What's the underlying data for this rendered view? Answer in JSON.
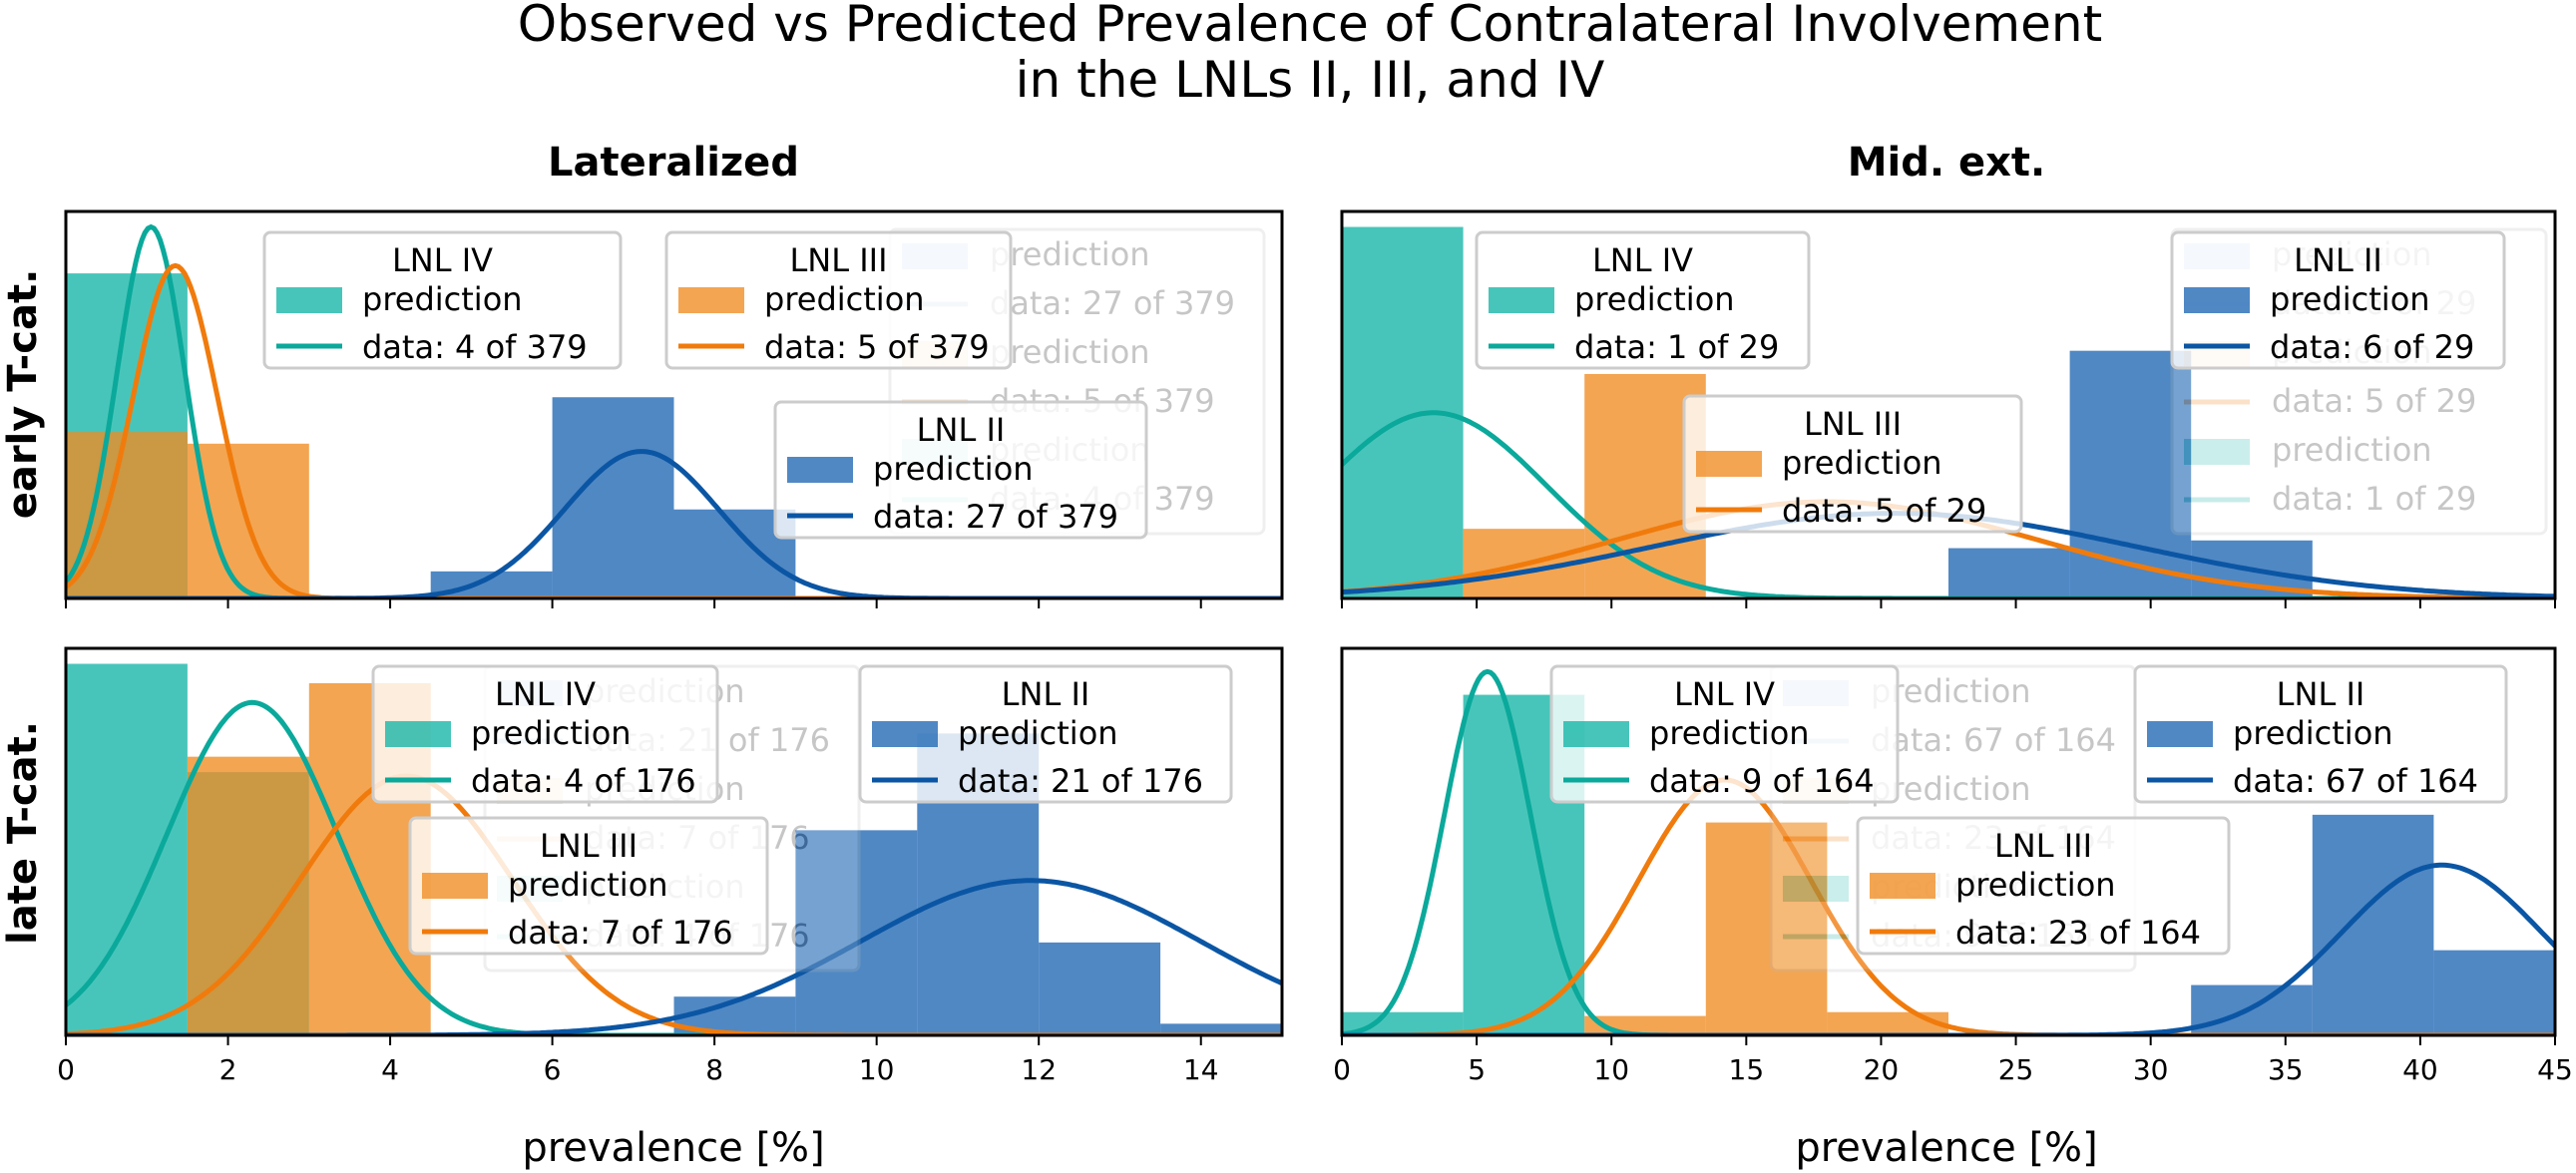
{
  "figure": {
    "title_line1": "Observed vs Predicted Prevalence of Contralateral Involvement",
    "title_line2": "in the LNLs II, III, and IV",
    "col_titles": [
      "Lateralized",
      "Mid. ext."
    ],
    "row_labels": [
      "early T-cat.",
      "late T-cat."
    ],
    "xlabel": "prevalence [%]"
  },
  "colors": {
    "LNL II": "#1f67b4",
    "LNL II line": "#0b56a4",
    "LNL III": "#f08c21",
    "LNL III line": "#f07b0c",
    "LNL IV": "#14b5a6",
    "LNL IV line": "#0aa99b"
  },
  "chart_data": [
    {
      "type": "histogram+line",
      "panel": "Lateralized / early T-cat.",
      "xlim": [
        0,
        15
      ],
      "xticks": [
        0,
        2,
        4,
        6,
        8,
        10,
        12,
        14
      ],
      "series": [
        {
          "name": "LNL IV",
          "legend_label": "LNL IV",
          "prediction_label": "prediction",
          "data_label": "data: 4 of 379",
          "hist": [
            {
              "x0": 0,
              "x1": 1.5,
              "h": 0.84
            }
          ],
          "curve": {
            "mean": 1.05,
            "sd": 0.42,
            "peak": 0.96
          }
        },
        {
          "name": "LNL III",
          "legend_label": "LNL III",
          "prediction_label": "prediction",
          "data_label": "data: 5 of 379",
          "hist": [
            {
              "x0": 0,
              "x1": 1.5,
              "h": 0.43
            },
            {
              "x0": 1.5,
              "x1": 3.0,
              "h": 0.4
            }
          ],
          "curve": {
            "mean": 1.35,
            "sd": 0.52,
            "peak": 0.86
          }
        },
        {
          "name": "LNL II",
          "legend_label": "LNL II",
          "prediction_label": "prediction",
          "data_label": "data: 27 of 379",
          "hist": [
            {
              "x0": 4.5,
              "x1": 6.0,
              "h": 0.07
            },
            {
              "x0": 6.0,
              "x1": 7.5,
              "h": 0.52
            },
            {
              "x0": 7.5,
              "x1": 9.0,
              "h": 0.23
            }
          ],
          "curve": {
            "mean": 7.1,
            "sd": 0.95,
            "peak": 0.38
          }
        }
      ],
      "ghost_legend": [
        "prediction",
        "data: 27 of 379",
        "prediction",
        "data: 5 of 379",
        "prediction",
        "data: 4 of 379"
      ]
    },
    {
      "type": "histogram+line",
      "panel": "Mid. ext. / early T-cat.",
      "xlim": [
        0,
        45
      ],
      "xticks": [
        0,
        5,
        10,
        15,
        20,
        25,
        30,
        35,
        40,
        45
      ],
      "series": [
        {
          "name": "LNL IV",
          "legend_label": "LNL IV",
          "prediction_label": "prediction",
          "data_label": "data: 1 of 29",
          "hist": [
            {
              "x0": 0,
              "x1": 4.5,
              "h": 0.96
            }
          ],
          "curve": {
            "mean": 3.4,
            "sd": 4.2,
            "peak": 0.48
          }
        },
        {
          "name": "LNL III",
          "legend_label": "LNL III",
          "prediction_label": "prediction",
          "data_label": "data: 5 of 29",
          "hist": [
            {
              "x0": 4.5,
              "x1": 9.0,
              "h": 0.18
            },
            {
              "x0": 9.0,
              "x1": 13.5,
              "h": 0.58
            }
          ],
          "curve": {
            "mean": 18.0,
            "sd": 7.8,
            "peak": 0.25
          }
        },
        {
          "name": "LNL II",
          "legend_label": "LNL II",
          "prediction_label": "prediction",
          "data_label": "data: 6 of 29",
          "hist": [
            {
              "x0": 22.5,
              "x1": 27.0,
              "h": 0.13
            },
            {
              "x0": 27.0,
              "x1": 31.5,
              "h": 0.64
            },
            {
              "x0": 31.5,
              "x1": 36.0,
              "h": 0.15
            }
          ],
          "curve": {
            "mean": 20.5,
            "sd": 9.0,
            "peak": 0.22
          }
        }
      ],
      "ghost_legend": [
        "prediction",
        "data: 6 of 29",
        "prediction",
        "data: 5 of 29",
        "prediction",
        "data: 1 of 29"
      ]
    },
    {
      "type": "histogram+line",
      "panel": "Lateralized / late T-cat.",
      "xlim": [
        0,
        15
      ],
      "xticks": [
        0,
        2,
        4,
        6,
        8,
        10,
        12,
        14
      ],
      "series": [
        {
          "name": "LNL IV",
          "legend_label": "LNL IV",
          "prediction_label": "prediction",
          "data_label": "data: 4 of 176",
          "hist": [
            {
              "x0": 0,
              "x1": 1.5,
              "h": 0.96
            },
            {
              "x0": 1.5,
              "x1": 3.0,
              "h": 0.68
            }
          ],
          "curve": {
            "mean": 2.3,
            "sd": 1.05,
            "peak": 0.86
          }
        },
        {
          "name": "LNL III",
          "legend_label": "LNL III",
          "prediction_label": "prediction",
          "data_label": "data: 7 of 176",
          "hist": [
            {
              "x0": 1.5,
              "x1": 3.0,
              "h": 0.72
            },
            {
              "x0": 3.0,
              "x1": 4.5,
              "h": 0.91
            }
          ],
          "curve": {
            "mean": 4.2,
            "sd": 1.3,
            "peak": 0.67
          }
        },
        {
          "name": "LNL II",
          "legend_label": "LNL II",
          "prediction_label": "prediction",
          "data_label": "data: 21 of 176",
          "hist": [
            {
              "x0": 7.5,
              "x1": 9.0,
              "h": 0.1
            },
            {
              "x0": 9.0,
              "x1": 10.5,
              "h": 0.53
            },
            {
              "x0": 10.5,
              "x1": 12.0,
              "h": 0.78
            },
            {
              "x0": 12.0,
              "x1": 13.5,
              "h": 0.24
            },
            {
              "x0": 13.5,
              "x1": 15.0,
              "h": 0.03
            }
          ],
          "curve": {
            "mean": 11.9,
            "sd": 2.1,
            "peak": 0.4
          }
        }
      ],
      "ghost_legend": [
        "prediction",
        "data: 21 of 176",
        "prediction",
        "data: 7 of 176",
        "prediction",
        "data: 4 of 176"
      ]
    },
    {
      "type": "histogram+line",
      "panel": "Mid. ext. / late T-cat.",
      "xlim": [
        0,
        45
      ],
      "xticks": [
        0,
        5,
        10,
        15,
        20,
        25,
        30,
        35,
        40,
        45
      ],
      "series": [
        {
          "name": "LNL IV",
          "legend_label": "LNL IV",
          "prediction_label": "prediction",
          "data_label": "data: 9 of 164",
          "hist": [
            {
              "x0": 0,
              "x1": 4.5,
              "h": 0.06
            },
            {
              "x0": 4.5,
              "x1": 9.0,
              "h": 0.88
            }
          ],
          "curve": {
            "mean": 5.4,
            "sd": 1.6,
            "peak": 0.94
          }
        },
        {
          "name": "LNL III",
          "legend_label": "LNL III",
          "prediction_label": "prediction",
          "data_label": "data: 23 of 164",
          "hist": [
            {
              "x0": 9.0,
              "x1": 13.5,
              "h": 0.05
            },
            {
              "x0": 13.5,
              "x1": 18.0,
              "h": 0.55
            },
            {
              "x0": 18.0,
              "x1": 22.5,
              "h": 0.06
            }
          ],
          "curve": {
            "mean": 14.2,
            "sd": 3.2,
            "peak": 0.66
          }
        },
        {
          "name": "LNL II",
          "legend_label": "LNL II",
          "prediction_label": "prediction",
          "data_label": "data: 67 of 164",
          "hist": [
            {
              "x0": 31.5,
              "x1": 36.0,
              "h": 0.13
            },
            {
              "x0": 36.0,
              "x1": 40.5,
              "h": 0.57
            },
            {
              "x0": 40.5,
              "x1": 45.0,
              "h": 0.22
            }
          ],
          "curve": {
            "mean": 40.8,
            "sd": 3.7,
            "peak": 0.44
          }
        }
      ],
      "ghost_legend": [
        "prediction",
        "data: 67 of 164",
        "prediction",
        "data: 23 of 164",
        "prediction",
        "data: 9 of 164"
      ]
    }
  ]
}
